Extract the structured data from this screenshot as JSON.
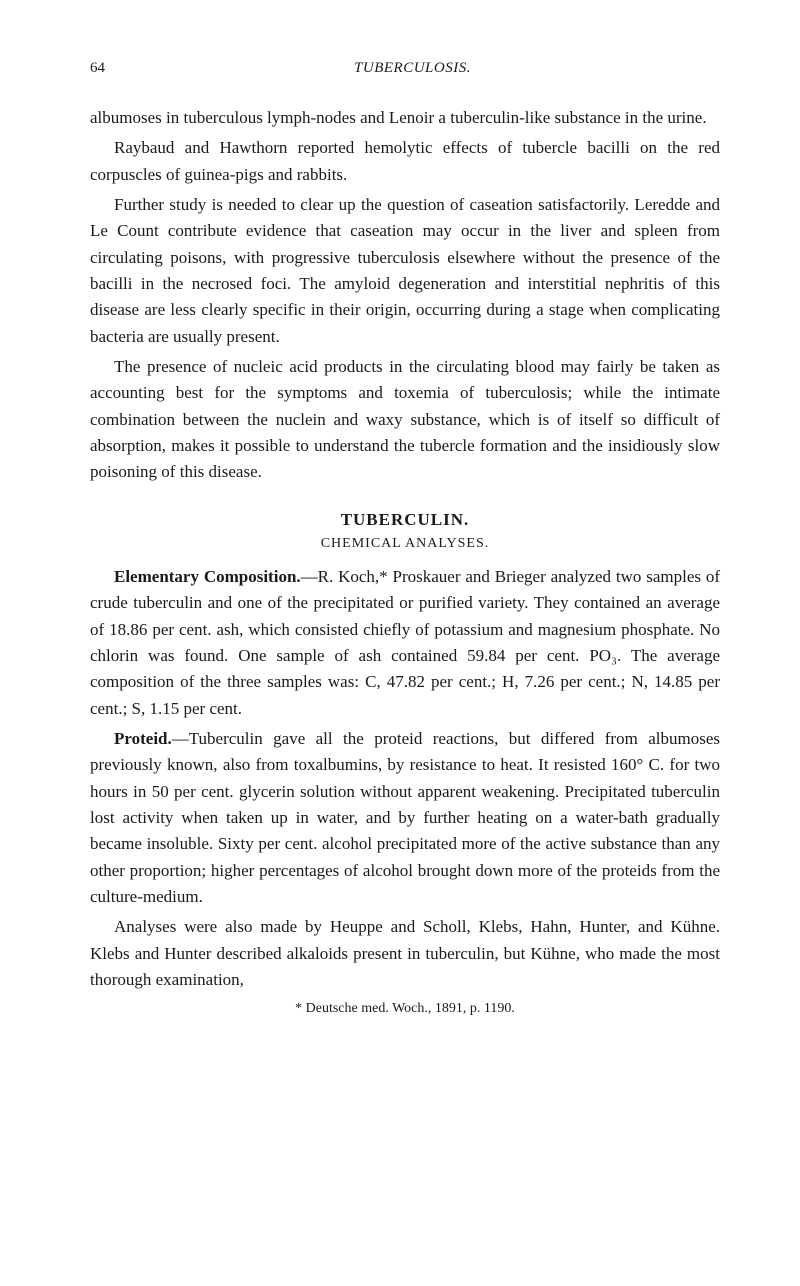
{
  "header": {
    "page_number": "64",
    "running_title": "TUBERCULOSIS."
  },
  "paragraphs": {
    "p1": "albumoses in tuberculous lymph-nodes and Lenoir a tuberculin-like substance in the urine.",
    "p2": "Raybaud and Hawthorn reported hemolytic effects of tubercle bacilli on the red corpuscles of guinea-pigs and rabbits.",
    "p3": "Further study is needed to clear up the question of caseation satisfactorily. Leredde and Le Count contribute evidence that caseation may occur in the liver and spleen from circulating poisons, with progressive tuberculosis elsewhere without the presence of the bacilli in the necrosed foci. The amyloid degeneration and interstitial nephritis of this disease are less clearly specific in their origin, occurring during a stage when complicating bacteria are usually present.",
    "p4": "The presence of nucleic acid products in the circulating blood may fairly be taken as accounting best for the symptoms and toxemia of tuberculosis; while the intimate combination between the nuclein and waxy substance, which is of itself so difficult of absorption, makes it possible to understand the tubercle formation and the insidiously slow poisoning of this disease.",
    "section_title": "TUBERCULIN.",
    "section_subtitle": "CHEMICAL ANALYSES.",
    "p5_lead": "Elementary Composition.",
    "p5_body": "—R. Koch,* Proskauer and Brieger analyzed two samples of crude tuberculin and one of the precipitated or purified variety. They contained an average of 18.86 per cent. ash, which consisted chiefly of potassium and magnesium phosphate. No chlorin was found. One sample of ash contained 59.84 per cent. PO₃. The average composition of the three samples was: C, 47.82 per cent.; H, 7.26 per cent.; N, 14.85 per cent.; S, 1.15 per cent.",
    "p6_lead": "Proteid.",
    "p6_body": "—Tuberculin gave all the proteid reactions, but differed from albumoses previously known, also from toxalbumins, by resistance to heat. It resisted 160° C. for two hours in 50 per cent. glycerin solution without apparent weakening. Precipitated tuberculin lost activity when taken up in water, and by further heating on a water-bath gradually became insoluble. Sixty per cent. alcohol precipitated more of the active substance than any other proportion; higher percentages of alcohol brought down more of the proteids from the culture-medium.",
    "p7": "Analyses were also made by Heuppe and Scholl, Klebs, Hahn, Hunter, and Kühne. Klebs and Hunter described alkaloids present in tuberculin, but Kühne, who made the most thorough examination,",
    "footnote": "* Deutsche med. Woch., 1891, p. 1190."
  },
  "colors": {
    "text": "#1a1a1a",
    "background": "#ffffff"
  },
  "typography": {
    "body_fontsize": 17,
    "header_fontsize": 15,
    "footnote_fontsize": 14,
    "line_height": 1.55,
    "font_family": "Georgia, Times New Roman, serif"
  }
}
